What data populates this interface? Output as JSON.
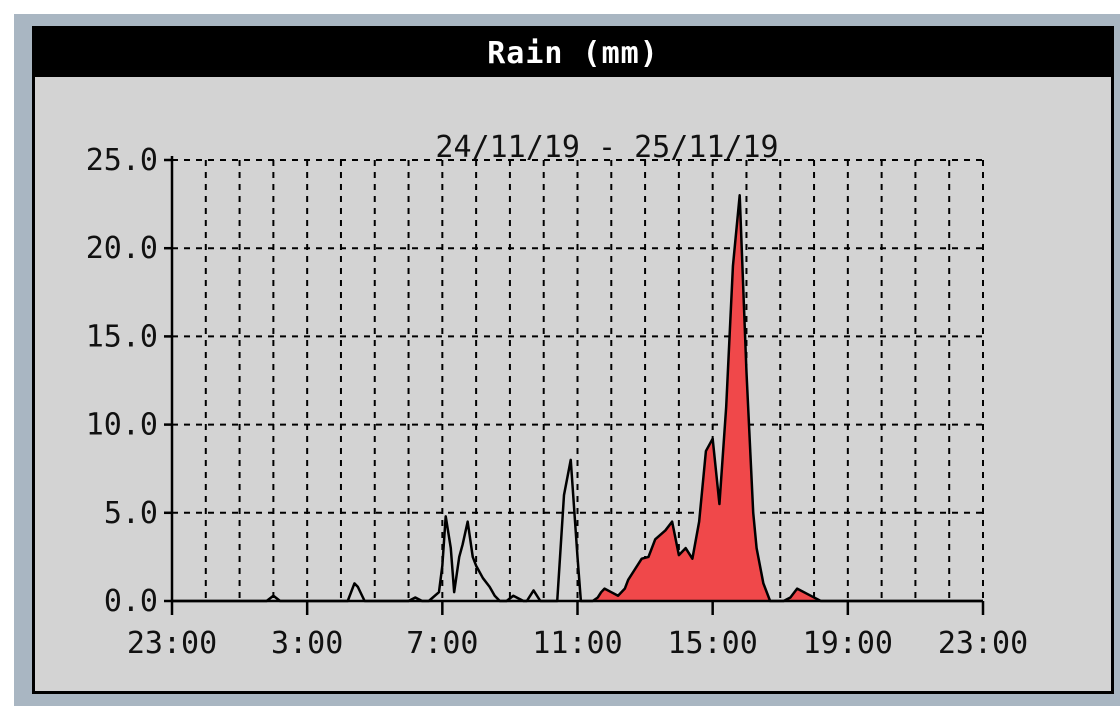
{
  "chart_data": {
    "type": "area",
    "title": "Rain (mm)",
    "subtitle": "24/11/19 - 25/11/19",
    "x_tick_labels": [
      "23:00",
      "3:00",
      "7:00",
      "11:00",
      "15:00",
      "19:00",
      "23:00"
    ],
    "y_tick_labels": [
      "0.0",
      "5.0",
      "10.0",
      "15.0",
      "20.0",
      "25.0"
    ],
    "xlim": [
      0,
      24
    ],
    "ylim": [
      0,
      25
    ],
    "grid": true,
    "colors": {
      "fill": "#f0484a",
      "line": "#000000",
      "panel": "#d3d3d3",
      "title_bar": "#000000",
      "frame": "#a9b6c2"
    },
    "series": [
      {
        "x": [
          0,
          2.8,
          3.0,
          3.2,
          5.2,
          5.4,
          5.5,
          5.7,
          7.0,
          7.2,
          7.4,
          7.6,
          7.9,
          8.0,
          8.1,
          8.25,
          8.35,
          8.5,
          8.6,
          8.75,
          8.9,
          9.0,
          9.2,
          9.4,
          9.55,
          9.7,
          9.9,
          10.1,
          10.4,
          10.5,
          10.7,
          10.9,
          11.0,
          11.2,
          11.4,
          11.6,
          11.8,
          12.0,
          12.1,
          12.3,
          12.45,
          12.6,
          12.7,
          12.8,
          13.0,
          13.2,
          13.4,
          13.5,
          13.7,
          13.9,
          14.1,
          14.3,
          14.6,
          14.8,
          15.0,
          15.2,
          15.4,
          15.6,
          15.8,
          16.0,
          16.2,
          16.4,
          16.6,
          16.8,
          17.0,
          17.2,
          17.3,
          17.5,
          17.7,
          17.9,
          18.1,
          18.3,
          18.5,
          18.8,
          19.2,
          20.0,
          24
        ],
        "y": [
          0,
          0,
          0.3,
          0,
          0,
          1.0,
          0.8,
          0,
          0,
          0.2,
          0,
          0,
          0.5,
          2.0,
          4.8,
          3.0,
          0.5,
          2.5,
          3.2,
          4.5,
          2.5,
          2.0,
          1.3,
          0.8,
          0.3,
          0,
          0,
          0.3,
          0,
          0,
          0.6,
          0,
          0,
          0,
          0,
          6.0,
          8.0,
          2.5,
          0,
          0,
          0,
          0.2,
          0.5,
          0.7,
          0.5,
          0.3,
          0.7,
          1.2,
          1.8,
          2.4,
          2.5,
          3.5,
          4.0,
          4.5,
          2.6,
          3.0,
          2.4,
          4.5,
          8.5,
          9.2,
          5.5,
          11.0,
          19.0,
          23.0,
          13.0,
          5.0,
          3.0,
          1.0,
          0,
          0,
          0,
          0.2,
          0.7,
          0.4,
          0,
          0,
          0
        ]
      }
    ]
  }
}
